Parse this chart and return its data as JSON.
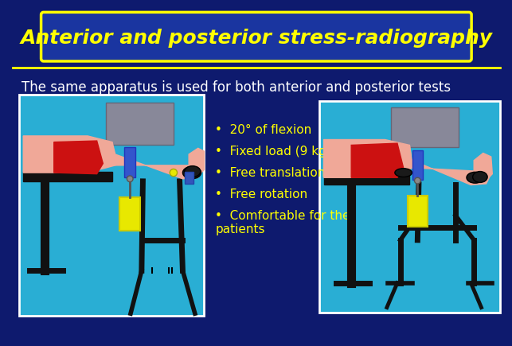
{
  "bg_color": "#0e1a6e",
  "title_text": "Anterior and posterior stress-radiography",
  "title_color": "#ffff00",
  "title_box_bg": "#1a35a0",
  "title_box_edge": "#ffff00",
  "subtitle_text": "The same apparatus is used for both anterior and posterior tests",
  "subtitle_color": "#ffffff",
  "bullet_text_color": "#ffff00",
  "bullets": [
    "20° of flexion",
    "Fixed load (9 kg)",
    "Free translation",
    "Free rotation",
    "Comfortable for the\npatients"
  ],
  "image_box_color": "#29aed4",
  "image_box_edge": "#ffffff",
  "separator_color": "#ffff00",
  "skin_color": "#f0a898",
  "red_color": "#cc1111",
  "blue_color": "#3355cc",
  "yellow_color": "#e8e800",
  "black_color": "#111111",
  "gray_color": "#888899"
}
